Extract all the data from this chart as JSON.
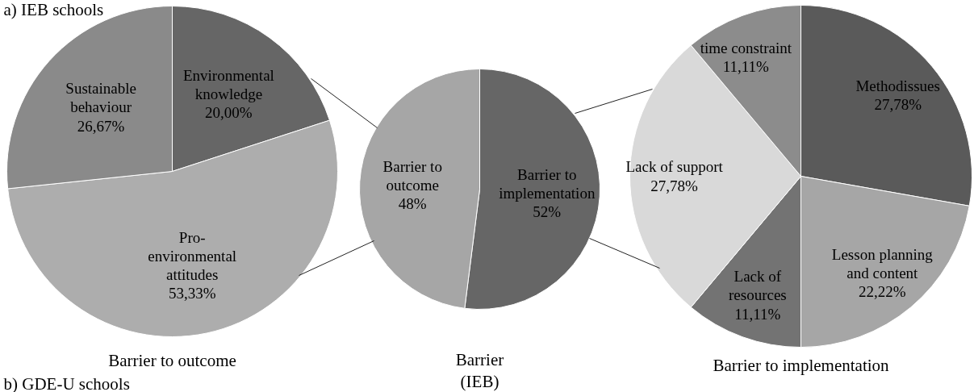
{
  "chart_data": [
    {
      "type": "pie",
      "title": "Barrier to outcome",
      "categories": [
        "Environmental knowledge",
        "Pro-environmental attitudes",
        "Sustainable behaviour"
      ],
      "values": [
        20.0,
        53.33,
        26.67
      ],
      "value_labels": [
        "20,00%",
        "53,33%",
        "26,67%"
      ],
      "colors": [
        "#666666",
        "#adadad",
        "#8a8a8a"
      ],
      "annotations": [
        "a) IEB schools",
        "b) GDE-U schools"
      ]
    },
    {
      "type": "pie",
      "title": "Barrier (IEB)",
      "categories": [
        "Barrier to implementation",
        "Barrier to outcome"
      ],
      "values": [
        52,
        48
      ],
      "value_labels": [
        "52%",
        "48%"
      ],
      "colors": [
        "#666666",
        "#a6a6a6"
      ]
    },
    {
      "type": "pie",
      "title": "Barrier to implementation",
      "categories": [
        "Methodissues",
        "Lesson planning and content",
        "Lack of resources",
        "Lack of support",
        "time constraint"
      ],
      "values": [
        27.78,
        22.22,
        11.11,
        27.78,
        11.11
      ],
      "value_labels": [
        "27,78%",
        "22,22%",
        "11,11%",
        "27,78%",
        "11,11%"
      ],
      "colors": [
        "#5a5a5a",
        "#a6a6a6",
        "#737373",
        "#d9d9d9",
        "#8c8c8c"
      ]
    }
  ]
}
